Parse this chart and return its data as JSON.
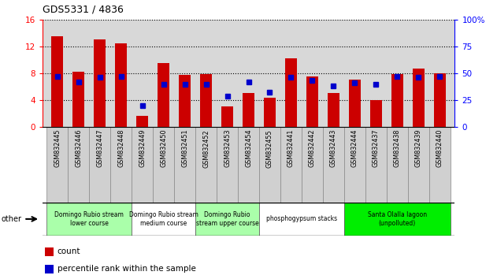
{
  "title": "GDS5331 / 4836",
  "samples": [
    "GSM832445",
    "GSM832446",
    "GSM832447",
    "GSM832448",
    "GSM832449",
    "GSM832450",
    "GSM832451",
    "GSM832452",
    "GSM832453",
    "GSM832454",
    "GSM832455",
    "GSM832441",
    "GSM832442",
    "GSM832443",
    "GSM832444",
    "GSM832437",
    "GSM832438",
    "GSM832439",
    "GSM832440"
  ],
  "counts": [
    13.5,
    8.2,
    13.0,
    12.4,
    1.7,
    9.5,
    7.8,
    7.9,
    3.1,
    5.0,
    4.3,
    10.2,
    7.5,
    5.0,
    7.0,
    4.0,
    7.9,
    8.7,
    8.0
  ],
  "percentile": [
    47,
    42,
    46,
    47,
    20,
    40,
    40,
    40,
    29,
    42,
    32,
    46,
    43,
    38,
    41,
    40,
    47,
    46,
    47
  ],
  "bar_color": "#cc0000",
  "dot_color": "#0000cc",
  "ylim_left": [
    0,
    16
  ],
  "ylim_right": [
    0,
    100
  ],
  "yticks_left": [
    0,
    4,
    8,
    12,
    16
  ],
  "yticks_right": [
    0,
    25,
    50,
    75,
    100
  ],
  "groups": [
    {
      "label": "Domingo Rubio stream\nlower course",
      "start": 0,
      "end": 4,
      "color": "#aaffaa"
    },
    {
      "label": "Domingo Rubio stream\nmedium course",
      "start": 4,
      "end": 7,
      "color": "#ffffff"
    },
    {
      "label": "Domingo Rubio\nstream upper course",
      "start": 7,
      "end": 10,
      "color": "#aaffaa"
    },
    {
      "label": "phosphogypsum stacks",
      "start": 10,
      "end": 14,
      "color": "#ffffff"
    },
    {
      "label": "Santa Olalla lagoon\n(unpolluted)",
      "start": 14,
      "end": 19,
      "color": "#00ee00"
    }
  ],
  "legend_count_label": "count",
  "legend_pct_label": "percentile rank within the sample",
  "other_label": "other",
  "background_color": "#ffffff",
  "plot_bg": "#d8d8d8",
  "xtick_bg": "#d0d0d0"
}
